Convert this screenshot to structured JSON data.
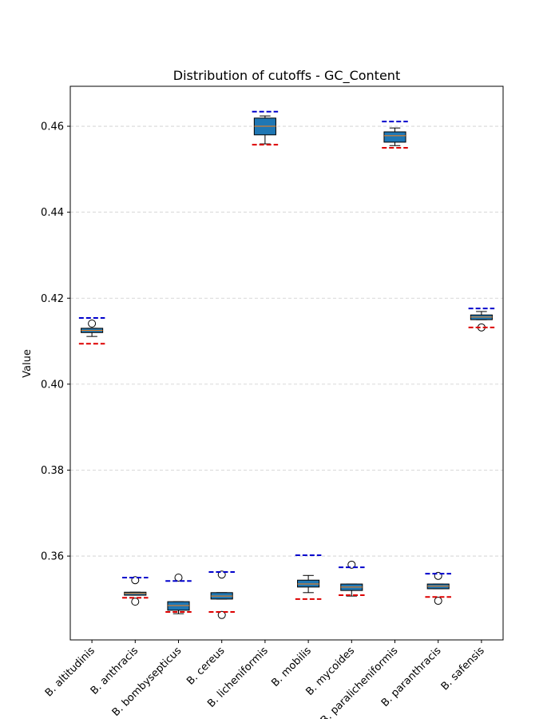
{
  "chart_data": {
    "type": "box",
    "title": "Distribution of cutoffs - GC_Content",
    "y_label": "Value",
    "categories": [
      "B. altitudinis",
      "B. anthracis",
      "B. bombysepticus",
      "B. cereus",
      "B. licheniformis",
      "B. mobilis",
      "B. mycoides",
      "B. paralicheniformis",
      "B. paranthracis",
      "B. safensis"
    ],
    "boxes": [
      {
        "whisker_low": 0.4111,
        "q1": 0.412,
        "median": 0.4125,
        "q3": 0.413,
        "whisker_high": 0.413,
        "outliers": [
          0.4141
        ]
      },
      {
        "whisker_low": 0.3509,
        "q1": 0.3509,
        "median": 0.3513,
        "q3": 0.3516,
        "whisker_high": 0.3516,
        "outliers": [
          0.3544,
          0.3494
        ]
      },
      {
        "whisker_low": 0.3466,
        "q1": 0.3474,
        "median": 0.3485,
        "q3": 0.3494,
        "whisker_high": 0.3494,
        "outliers": [
          0.355
        ]
      },
      {
        "whisker_low": 0.35,
        "q1": 0.35,
        "median": 0.3507,
        "q3": 0.3515,
        "whisker_high": 0.3515,
        "outliers": [
          0.3557,
          0.3463
        ]
      },
      {
        "whisker_low": 0.4559,
        "q1": 0.458,
        "median": 0.46,
        "q3": 0.4619,
        "whisker_high": 0.4624,
        "outliers": []
      },
      {
        "whisker_low": 0.3515,
        "q1": 0.3528,
        "median": 0.3535,
        "q3": 0.3544,
        "whisker_high": 0.3555,
        "outliers": []
      },
      {
        "whisker_low": 0.3507,
        "q1": 0.352,
        "median": 0.3528,
        "q3": 0.3535,
        "whisker_high": 0.3535,
        "outliers": [
          0.358
        ]
      },
      {
        "whisker_low": 0.4555,
        "q1": 0.4563,
        "median": 0.4578,
        "q3": 0.4587,
        "whisker_high": 0.4596,
        "outliers": []
      },
      {
        "whisker_low": 0.3524,
        "q1": 0.3524,
        "median": 0.353,
        "q3": 0.3535,
        "whisker_high": 0.3535,
        "outliers": [
          0.3554,
          0.3496
        ]
      },
      {
        "whisker_low": 0.415,
        "q1": 0.415,
        "median": 0.4156,
        "q3": 0.4161,
        "whisker_high": 0.4169,
        "outliers": [
          0.4132
        ]
      }
    ],
    "upper_cutoff": [
      0.4154,
      0.355,
      0.3542,
      0.3563,
      0.4634,
      0.3602,
      0.3574,
      0.4611,
      0.3559,
      0.4176
    ],
    "lower_cutoff": [
      0.4094,
      0.3503,
      0.347,
      0.347,
      0.4557,
      0.35,
      0.3509,
      0.455,
      0.3505,
      0.4132
    ],
    "box_color": "#1f77b4",
    "median_color": "#ff7f0e",
    "upper_cutoff_color": "#0000cc",
    "lower_cutoff_color": "#dd0000",
    "ylim": [
      0.3405,
      0.4693
    ],
    "yticks": [
      0.36,
      0.38,
      {
        "value": 0.4,
        "label": "0.40"
      },
      0.42,
      0.44,
      0.46
    ],
    "grid": true
  }
}
